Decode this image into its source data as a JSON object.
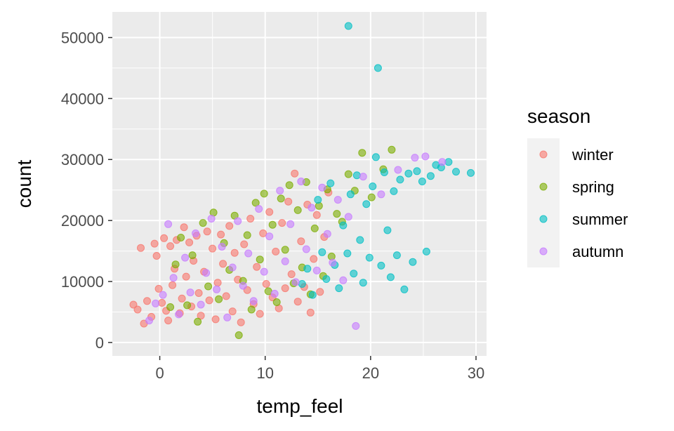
{
  "chart_data": {
    "type": "scatter",
    "xlabel": "temp_feel",
    "ylabel": "count",
    "xlim": [
      -4.5,
      31
    ],
    "ylim": [
      -2200,
      54200
    ],
    "x_ticks": [
      0,
      10,
      20,
      30
    ],
    "x_tick_labels": [
      "0",
      "10",
      "20",
      "30"
    ],
    "y_ticks": [
      0,
      10000,
      20000,
      30000,
      40000,
      50000
    ],
    "y_tick_labels": [
      "0",
      "10000",
      "20000",
      "30000",
      "40000",
      "50000"
    ],
    "grid": true,
    "point_alpha": 0.6,
    "legend": {
      "title": "season",
      "position": "right"
    },
    "series": [
      {
        "name": "winter",
        "color": "#F8766D",
        "points": [
          [
            -2.5,
            6200
          ],
          [
            -2.1,
            5400
          ],
          [
            -1.8,
            15500
          ],
          [
            -1.5,
            3100
          ],
          [
            -1.2,
            6800
          ],
          [
            -0.8,
            4200
          ],
          [
            -0.5,
            16200
          ],
          [
            -0.3,
            14200
          ],
          [
            -0.1,
            8800
          ],
          [
            0.2,
            6500
          ],
          [
            0.4,
            17100
          ],
          [
            0.6,
            5200
          ],
          [
            0.8,
            3600
          ],
          [
            1.0,
            15800
          ],
          [
            1.2,
            9400
          ],
          [
            1.4,
            12100
          ],
          [
            1.6,
            16800
          ],
          [
            1.9,
            4800
          ],
          [
            2.1,
            7200
          ],
          [
            2.3,
            18900
          ],
          [
            2.5,
            10800
          ],
          [
            2.8,
            16400
          ],
          [
            3.0,
            5900
          ],
          [
            3.2,
            13400
          ],
          [
            3.5,
            17500
          ],
          [
            3.7,
            8100
          ],
          [
            3.9,
            4400
          ],
          [
            4.2,
            11600
          ],
          [
            4.5,
            18200
          ],
          [
            4.7,
            6900
          ],
          [
            5.0,
            15400
          ],
          [
            5.3,
            3800
          ],
          [
            5.5,
            9800
          ],
          [
            5.8,
            17700
          ],
          [
            6.0,
            12900
          ],
          [
            6.3,
            7600
          ],
          [
            6.6,
            19100
          ],
          [
            6.9,
            5100
          ],
          [
            7.1,
            14700
          ],
          [
            7.4,
            10300
          ],
          [
            7.7,
            3300
          ],
          [
            8.0,
            16100
          ],
          [
            8.3,
            8600
          ],
          [
            8.6,
            20300
          ],
          [
            8.9,
            6300
          ],
          [
            9.2,
            12400
          ],
          [
            9.5,
            4700
          ],
          [
            9.8,
            17900
          ],
          [
            10.1,
            9600
          ],
          [
            10.4,
            21400
          ],
          [
            10.7,
            7400
          ],
          [
            11.0,
            14900
          ],
          [
            11.3,
            5600
          ],
          [
            11.6,
            19600
          ],
          [
            11.9,
            8900
          ],
          [
            12.2,
            23100
          ],
          [
            12.5,
            11200
          ],
          [
            12.8,
            27700
          ],
          [
            13.1,
            6700
          ],
          [
            13.4,
            16600
          ],
          [
            13.7,
            9100
          ],
          [
            14.0,
            22600
          ],
          [
            14.3,
            4900
          ],
          [
            14.6,
            13700
          ],
          [
            14.9,
            20900
          ],
          [
            15.2,
            8300
          ],
          [
            15.6,
            17300
          ],
          [
            16.0,
            24600
          ]
        ]
      },
      {
        "name": "spring",
        "color": "#7CAE00",
        "points": [
          [
            1.0,
            5800
          ],
          [
            1.5,
            12800
          ],
          [
            2.0,
            17200
          ],
          [
            2.6,
            6100
          ],
          [
            3.1,
            14300
          ],
          [
            3.6,
            3400
          ],
          [
            4.1,
            19600
          ],
          [
            4.6,
            9200
          ],
          [
            5.1,
            21300
          ],
          [
            5.6,
            7100
          ],
          [
            6.1,
            16300
          ],
          [
            6.6,
            11900
          ],
          [
            7.1,
            20800
          ],
          [
            7.5,
            1200
          ],
          [
            7.9,
            10100
          ],
          [
            8.3,
            17600
          ],
          [
            8.7,
            5400
          ],
          [
            9.1,
            22900
          ],
          [
            9.5,
            13600
          ],
          [
            9.9,
            24400
          ],
          [
            10.3,
            8400
          ],
          [
            10.7,
            19300
          ],
          [
            11.1,
            6600
          ],
          [
            11.5,
            23600
          ],
          [
            11.9,
            15200
          ],
          [
            12.3,
            25800
          ],
          [
            12.7,
            9700
          ],
          [
            13.1,
            21700
          ],
          [
            13.5,
            12300
          ],
          [
            13.9,
            26300
          ],
          [
            14.3,
            7900
          ],
          [
            14.7,
            18700
          ],
          [
            15.1,
            22400
          ],
          [
            15.5,
            10900
          ],
          [
            15.9,
            25100
          ],
          [
            16.3,
            14100
          ],
          [
            16.8,
            21100
          ],
          [
            17.3,
            19800
          ],
          [
            17.9,
            27600
          ],
          [
            18.5,
            24900
          ],
          [
            19.2,
            31100
          ],
          [
            20.1,
            23800
          ],
          [
            21.2,
            28400
          ],
          [
            22.0,
            31600
          ]
        ]
      },
      {
        "name": "summer",
        "color": "#00BFC4",
        "points": [
          [
            13.5,
            9600
          ],
          [
            14.0,
            12100
          ],
          [
            14.5,
            7800
          ],
          [
            15.0,
            23400
          ],
          [
            15.4,
            14800
          ],
          [
            15.8,
            10400
          ],
          [
            16.2,
            26100
          ],
          [
            16.6,
            12700
          ],
          [
            17.0,
            8900
          ],
          [
            17.4,
            19200
          ],
          [
            17.8,
            14600
          ],
          [
            17.9,
            51900
          ],
          [
            18.1,
            24300
          ],
          [
            18.4,
            11300
          ],
          [
            18.7,
            27400
          ],
          [
            19.0,
            16800
          ],
          [
            19.3,
            9800
          ],
          [
            19.6,
            22700
          ],
          [
            19.9,
            13900
          ],
          [
            20.2,
            25600
          ],
          [
            20.5,
            30400
          ],
          [
            20.7,
            45000
          ],
          [
            21.0,
            12600
          ],
          [
            21.3,
            27900
          ],
          [
            21.6,
            18400
          ],
          [
            21.9,
            10700
          ],
          [
            22.2,
            24800
          ],
          [
            22.5,
            14300
          ],
          [
            22.8,
            26700
          ],
          [
            23.2,
            8700
          ],
          [
            23.6,
            27700
          ],
          [
            24.0,
            13200
          ],
          [
            24.4,
            28100
          ],
          [
            24.9,
            26400
          ],
          [
            25.3,
            14900
          ],
          [
            25.7,
            27300
          ],
          [
            26.2,
            29100
          ],
          [
            26.7,
            28700
          ],
          [
            27.4,
            29600
          ],
          [
            28.1,
            28000
          ],
          [
            29.5,
            27800
          ]
        ]
      },
      {
        "name": "autumn",
        "color": "#C77CFF",
        "points": [
          [
            -1.0,
            3600
          ],
          [
            -0.4,
            6400
          ],
          [
            0.3,
            7800
          ],
          [
            0.8,
            19400
          ],
          [
            1.3,
            10600
          ],
          [
            1.8,
            4600
          ],
          [
            2.4,
            13900
          ],
          [
            2.9,
            8200
          ],
          [
            3.4,
            17900
          ],
          [
            3.9,
            6200
          ],
          [
            4.4,
            11400
          ],
          [
            4.9,
            20300
          ],
          [
            5.4,
            8700
          ],
          [
            5.9,
            15700
          ],
          [
            6.4,
            4100
          ],
          [
            6.9,
            12300
          ],
          [
            7.4,
            19900
          ],
          [
            7.9,
            9300
          ],
          [
            8.4,
            14600
          ],
          [
            8.9,
            6800
          ],
          [
            9.4,
            21900
          ],
          [
            9.9,
            11600
          ],
          [
            10.4,
            17400
          ],
          [
            10.9,
            8000
          ],
          [
            11.4,
            24900
          ],
          [
            11.9,
            13300
          ],
          [
            12.4,
            19400
          ],
          [
            12.9,
            9900
          ],
          [
            13.4,
            26400
          ],
          [
            13.9,
            15300
          ],
          [
            14.4,
            22100
          ],
          [
            14.9,
            11800
          ],
          [
            15.4,
            25400
          ],
          [
            15.9,
            17800
          ],
          [
            16.4,
            13100
          ],
          [
            16.9,
            23400
          ],
          [
            17.4,
            10200
          ],
          [
            17.9,
            20600
          ],
          [
            18.6,
            2700
          ],
          [
            19.3,
            27200
          ],
          [
            21.0,
            24300
          ],
          [
            22.6,
            28300
          ],
          [
            24.2,
            30300
          ],
          [
            25.2,
            30500
          ],
          [
            26.8,
            29600
          ]
        ]
      }
    ]
  }
}
